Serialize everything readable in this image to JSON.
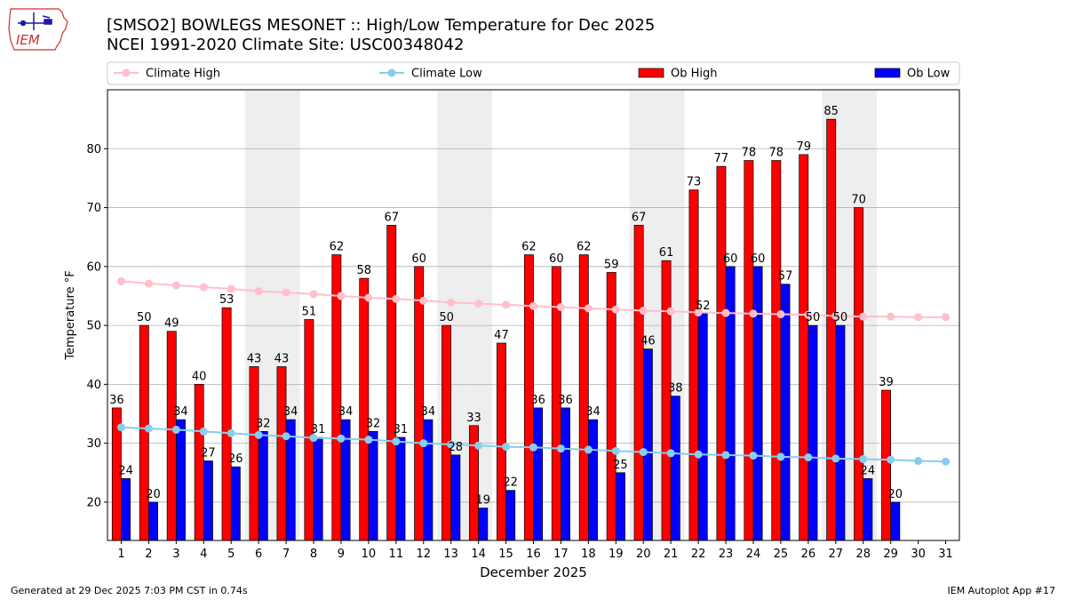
{
  "header": {
    "line1": "[SMSO2] BOWLEGS MESONET :: High/Low Temperature for Dec 2025",
    "line2": "NCEI 1991-2020 Climate Site: USC00348042",
    "logo_text": "IEM"
  },
  "footer": {
    "generated": "Generated at 29 Dec 2025 7:03 PM CST in 0.74s",
    "app": "IEM Autoplot App #17"
  },
  "colors": {
    "ob_high": "#ff0000",
    "ob_low": "#0000ff",
    "climate_high": "#ffc0cb",
    "climate_low": "#87ceeb",
    "weekend_band": "#eeeeee",
    "grid": "#b0b0b0"
  },
  "chart_data": {
    "type": "bar",
    "title": "[SMSO2] BOWLEGS MESONET :: High/Low Temperature for Dec 2025",
    "subtitle": "NCEI 1991-2020 Climate Site: USC00348042",
    "xlabel": "December 2025",
    "ylabel": "Temperature °F",
    "ylim": [
      13.5,
      90
    ],
    "yticks": [
      20,
      30,
      40,
      50,
      60,
      70,
      80
    ],
    "grid": "horizontal",
    "legend_position": "top",
    "categories": [
      1,
      2,
      3,
      4,
      5,
      6,
      7,
      8,
      9,
      10,
      11,
      12,
      13,
      14,
      15,
      16,
      17,
      18,
      19,
      20,
      21,
      22,
      23,
      24,
      25,
      26,
      27,
      28,
      29,
      30,
      31
    ],
    "weekend_days": [
      6,
      7,
      13,
      14,
      20,
      21,
      27,
      28
    ],
    "legend": [
      "Climate High",
      "Climate Low",
      "Ob High",
      "Ob Low"
    ],
    "series": [
      {
        "name": "Ob High",
        "kind": "bar",
        "values": [
          36,
          50,
          49,
          40,
          53,
          43,
          43,
          51,
          62,
          58,
          67,
          60,
          50,
          33,
          47,
          62,
          60,
          62,
          59,
          67,
          61,
          73,
          77,
          78,
          78,
          79,
          85,
          70,
          39,
          null,
          null
        ]
      },
      {
        "name": "Ob Low",
        "kind": "bar",
        "values": [
          24,
          20,
          34,
          27,
          26,
          32,
          34,
          31,
          34,
          32,
          31,
          34,
          28,
          19,
          22,
          36,
          36,
          34,
          25,
          46,
          38,
          52,
          60,
          60,
          57,
          50,
          50,
          24,
          20,
          null,
          null
        ]
      },
      {
        "name": "Climate High",
        "kind": "line",
        "values": [
          57.5,
          57.1,
          56.8,
          56.5,
          56.2,
          55.8,
          55.6,
          55.3,
          55.0,
          54.7,
          54.5,
          54.2,
          53.9,
          53.7,
          53.5,
          53.3,
          53.1,
          52.9,
          52.7,
          52.5,
          52.4,
          52.2,
          52.1,
          52.0,
          51.9,
          51.8,
          51.6,
          51.5,
          51.5,
          51.4,
          51.4
        ]
      },
      {
        "name": "Climate Low",
        "kind": "line",
        "values": [
          32.7,
          32.5,
          32.3,
          32.0,
          31.7,
          31.4,
          31.2,
          30.9,
          30.8,
          30.6,
          30.3,
          30.0,
          29.8,
          29.6,
          29.4,
          29.3,
          29.1,
          28.9,
          28.7,
          28.5,
          28.3,
          28.1,
          28.0,
          27.9,
          27.7,
          27.6,
          27.4,
          27.3,
          27.2,
          27.0,
          26.9
        ]
      }
    ]
  }
}
